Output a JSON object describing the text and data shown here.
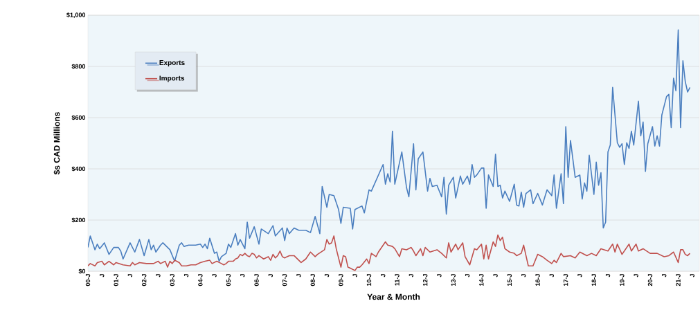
{
  "chart_data": {
    "type": "line",
    "xlabel": "Year & Month",
    "ylabel": "$s CAD Millions",
    "xlim": [
      "2000-01",
      "2021-10"
    ],
    "xticks": [
      {
        "value": "2000-01",
        "label": "00-J"
      },
      {
        "value": "2000-07",
        "label": "J"
      },
      {
        "value": "2001-01",
        "label": "01-J"
      },
      {
        "value": "2001-07",
        "label": "J"
      },
      {
        "value": "2002-01",
        "label": "02-J"
      },
      {
        "value": "2002-07",
        "label": "J"
      },
      {
        "value": "2003-01",
        "label": "03-J"
      },
      {
        "value": "2003-07",
        "label": "J"
      },
      {
        "value": "2004-01",
        "label": "04-J"
      },
      {
        "value": "2004-07",
        "label": "J"
      },
      {
        "value": "2005-01",
        "label": "05-J"
      },
      {
        "value": "2005-07",
        "label": "J"
      },
      {
        "value": "2006-01",
        "label": "06-J"
      },
      {
        "value": "2006-07",
        "label": "J"
      },
      {
        "value": "2007-01",
        "label": "07-J"
      },
      {
        "value": "2007-07",
        "label": "J"
      },
      {
        "value": "2008-01",
        "label": "08-J"
      },
      {
        "value": "2008-07",
        "label": "J"
      },
      {
        "value": "2009-01",
        "label": "09-J"
      },
      {
        "value": "2009-07",
        "label": "J"
      },
      {
        "value": "2010-01",
        "label": "10-J"
      },
      {
        "value": "2010-07",
        "label": "J"
      },
      {
        "value": "2011-01",
        "label": "11-J"
      },
      {
        "value": "2011-07",
        "label": "J"
      },
      {
        "value": "2012-01",
        "label": "12-J"
      },
      {
        "value": "2012-07",
        "label": "J"
      },
      {
        "value": "2013-01",
        "label": "13-J"
      },
      {
        "value": "2013-07",
        "label": "J"
      },
      {
        "value": "2014-01",
        "label": "14-J"
      },
      {
        "value": "2014-07",
        "label": "J"
      },
      {
        "value": "2015-01",
        "label": "15-J"
      },
      {
        "value": "2015-07",
        "label": "J"
      },
      {
        "value": "2016-01",
        "label": "16-J"
      },
      {
        "value": "2016-07",
        "label": "J"
      },
      {
        "value": "2017-01",
        "label": "17-J"
      },
      {
        "value": "2017-07",
        "label": "J"
      },
      {
        "value": "2018-01",
        "label": "18-J"
      },
      {
        "value": "2018-07",
        "label": "J"
      },
      {
        "value": "2019-01",
        "label": "19-J"
      },
      {
        "value": "2019-07",
        "label": "J"
      },
      {
        "value": "2020-01",
        "label": "20-J"
      },
      {
        "value": "2020-07",
        "label": "J"
      },
      {
        "value": "2021-01",
        "label": "21-J"
      },
      {
        "value": "2021-07",
        "label": "J"
      }
    ],
    "ylim": [
      0,
      1000
    ],
    "yticks": [
      {
        "value": 0,
        "label": "$0"
      },
      {
        "value": 200,
        "label": "$200"
      },
      {
        "value": 400,
        "label": "$400"
      },
      {
        "value": 600,
        "label": "$600"
      },
      {
        "value": 800,
        "label": "$800"
      },
      {
        "value": 1000,
        "label": "$1,000"
      }
    ],
    "grid": "y",
    "legend": "top left",
    "marker": "none",
    "line_style": "solid",
    "series": [
      {
        "name": "Exports",
        "color": "#4a7ebf",
        "x": [
          "2000-01",
          "2000-02",
          "2000-04",
          "2000-05",
          "2000-06",
          "2000-08",
          "2000-10",
          "2000-12",
          "2001-02",
          "2001-03",
          "2001-04",
          "2001-07",
          "2001-09",
          "2001-11",
          "2002-01",
          "2002-03",
          "2002-04",
          "2002-05",
          "2002-06",
          "2002-08",
          "2002-09",
          "2002-12",
          "2003-02",
          "2003-04",
          "2003-05",
          "2003-06",
          "2003-08",
          "2003-11",
          "2004-01",
          "2004-02",
          "2004-03",
          "2004-04",
          "2004-05",
          "2004-07",
          "2004-08",
          "2004-09",
          "2004-10",
          "2004-12",
          "2005-01",
          "2005-02",
          "2005-04",
          "2005-05",
          "2005-06",
          "2005-08",
          "2005-09",
          "2005-10",
          "2005-12",
          "2006-02",
          "2006-03",
          "2006-06",
          "2006-08",
          "2006-09",
          "2006-12",
          "2007-01",
          "2007-02",
          "2007-03",
          "2007-05",
          "2007-07",
          "2007-10",
          "2007-12",
          "2008-02",
          "2008-04",
          "2008-05",
          "2008-07",
          "2008-08",
          "2008-10",
          "2008-12",
          "2009-01",
          "2009-02",
          "2009-05",
          "2009-06",
          "2009-07",
          "2009-10",
          "2009-11",
          "2010-01",
          "2010-02",
          "2010-07",
          "2010-08",
          "2010-09",
          "2010-10",
          "2010-11",
          "2010-12",
          "2011-03",
          "2011-05",
          "2011-06",
          "2011-08",
          "2011-09",
          "2011-10",
          "2011-12",
          "2012-02",
          "2012-03",
          "2012-04",
          "2012-06",
          "2012-08",
          "2012-09",
          "2012-10",
          "2012-11",
          "2013-01",
          "2013-02",
          "2013-04",
          "2013-05",
          "2013-07",
          "2013-08",
          "2013-09",
          "2013-10",
          "2013-11",
          "2014-01",
          "2014-02",
          "2014-03",
          "2014-04",
          "2014-06",
          "2014-07",
          "2014-08",
          "2014-09",
          "2014-10",
          "2014-11",
          "2015-01",
          "2015-03",
          "2015-04",
          "2015-05",
          "2015-06",
          "2015-07",
          "2015-08",
          "2015-10",
          "2015-11",
          "2016-01",
          "2016-03",
          "2016-05",
          "2016-07",
          "2016-08",
          "2016-09",
          "2016-11",
          "2016-12",
          "2017-01",
          "2017-02",
          "2017-03",
          "2017-05",
          "2017-07",
          "2017-08",
          "2017-09",
          "2017-10",
          "2017-11",
          "2018-01",
          "2018-02",
          "2018-03",
          "2018-04",
          "2018-05",
          "2018-06",
          "2018-07",
          "2018-08",
          "2018-09",
          "2018-11",
          "2018-12",
          "2019-01",
          "2019-02",
          "2019-03",
          "2019-04",
          "2019-05",
          "2019-06",
          "2019-08",
          "2019-09",
          "2019-10",
          "2019-11",
          "2019-12",
          "2020-02",
          "2020-03",
          "2020-04",
          "2020-05",
          "2020-06",
          "2020-08",
          "2020-09",
          "2020-10",
          "2020-11",
          "2020-12",
          "2021-01",
          "2021-02",
          "2021-03",
          "2021-04",
          "2021-05",
          "2021-06"
        ],
        "values": [
          93,
          138,
          84,
          106,
          88,
          111,
          66,
          93,
          93,
          79,
          48,
          111,
          75,
          124,
          61,
          124,
          84,
          102,
          75,
          102,
          111,
          84,
          39,
          102,
          111,
          97,
          102,
          102,
          106,
          93,
          106,
          88,
          129,
          70,
          75,
          39,
          57,
          70,
          106,
          93,
          147,
          102,
          124,
          88,
          192,
          129,
          174,
          106,
          165,
          147,
          178,
          138,
          169,
          120,
          169,
          147,
          169,
          160,
          160,
          151,
          214,
          147,
          331,
          250,
          300,
          295,
          241,
          187,
          250,
          246,
          165,
          241,
          255,
          228,
          318,
          313,
          417,
          340,
          381,
          349,
          547,
          340,
          466,
          327,
          291,
          498,
          318,
          439,
          466,
          313,
          363,
          331,
          336,
          291,
          367,
          223,
          336,
          367,
          286,
          372,
          340,
          372,
          340,
          417,
          367,
          376,
          403,
          403,
          246,
          376,
          331,
          457,
          331,
          336,
          286,
          313,
          273,
          340,
          259,
          255,
          309,
          250,
          304,
          318,
          264,
          304,
          259,
          318,
          295,
          376,
          246,
          381,
          264,
          565,
          367,
          511,
          367,
          376,
          282,
          345,
          313,
          453,
          300,
          426,
          336,
          385,
          169,
          192,
          466,
          493,
          718,
          502,
          484,
          498,
          417,
          502,
          480,
          547,
          493,
          664,
          529,
          583,
          390,
          498,
          565,
          489,
          529,
          489,
          610,
          682,
          691,
          561,
          754,
          705,
          943,
          561,
          822,
          741,
          700,
          718
        ]
      },
      {
        "name": "Imports",
        "color": "#c0504d",
        "x": [
          "2000-01",
          "2000-02",
          "2000-04",
          "2000-05",
          "2000-07",
          "2000-08",
          "2000-10",
          "2000-12",
          "2001-01",
          "2001-04",
          "2001-07",
          "2001-08",
          "2001-09",
          "2001-11",
          "2002-02",
          "2002-05",
          "2002-07",
          "2002-08",
          "2002-10",
          "2002-11",
          "2002-12",
          "2003-01",
          "2003-02",
          "2003-04",
          "2003-05",
          "2003-07",
          "2003-09",
          "2003-11",
          "2004-01",
          "2004-03",
          "2004-05",
          "2004-06",
          "2004-08",
          "2004-10",
          "2004-11",
          "2004-12",
          "2005-01",
          "2005-03",
          "2005-04",
          "2005-05",
          "2005-06",
          "2005-07",
          "2005-08",
          "2005-09",
          "2005-10",
          "2005-11",
          "2005-12",
          "2006-01",
          "2006-02",
          "2006-04",
          "2006-06",
          "2006-07",
          "2006-08",
          "2006-09",
          "2006-10",
          "2006-11",
          "2006-12",
          "2007-01",
          "2007-02",
          "2007-03",
          "2007-05",
          "2007-08",
          "2007-10",
          "2007-12",
          "2008-02",
          "2008-03",
          "2008-06",
          "2008-07",
          "2008-08",
          "2008-09",
          "2008-10",
          "2008-11",
          "2009-01",
          "2009-02",
          "2009-03",
          "2009-04",
          "2009-05",
          "2009-07",
          "2009-08",
          "2009-09",
          "2009-10",
          "2009-12",
          "2010-01",
          "2010-02",
          "2010-04",
          "2010-05",
          "2010-08",
          "2010-09",
          "2010-11",
          "2010-12",
          "2011-02",
          "2011-03",
          "2011-05",
          "2011-07",
          "2011-08",
          "2011-09",
          "2011-11",
          "2011-12",
          "2012-01",
          "2012-03",
          "2012-06",
          "2012-08",
          "2012-10",
          "2012-11",
          "2012-12",
          "2013-02",
          "2013-03",
          "2013-05",
          "2013-06",
          "2013-08",
          "2013-10",
          "2013-11",
          "2014-01",
          "2014-02",
          "2014-03",
          "2014-04",
          "2014-06",
          "2014-07",
          "2014-08",
          "2014-09",
          "2014-10",
          "2014-11",
          "2015-01",
          "2015-03",
          "2015-04",
          "2015-06",
          "2015-07",
          "2015-08",
          "2015-09",
          "2015-11",
          "2016-01",
          "2016-03",
          "2016-05",
          "2016-07",
          "2016-08",
          "2016-09",
          "2016-11",
          "2016-12",
          "2017-03",
          "2017-05",
          "2017-07",
          "2017-10",
          "2017-12",
          "2018-02",
          "2018-04",
          "2018-07",
          "2018-09",
          "2018-10",
          "2018-11",
          "2019-01",
          "2019-04",
          "2019-05",
          "2019-07",
          "2019-08",
          "2019-10",
          "2020-01",
          "2020-04",
          "2020-07",
          "2020-09",
          "2020-11",
          "2021-01",
          "2021-02",
          "2021-03",
          "2021-04",
          "2021-05",
          "2021-06"
        ],
        "values": [
          21,
          30,
          21,
          34,
          39,
          25,
          39,
          25,
          34,
          25,
          21,
          34,
          25,
          34,
          30,
          30,
          39,
          30,
          39,
          16,
          39,
          30,
          43,
          34,
          21,
          21,
          25,
          25,
          34,
          39,
          43,
          30,
          39,
          30,
          25,
          30,
          39,
          39,
          48,
          52,
          66,
          61,
          70,
          61,
          57,
          70,
          66,
          52,
          61,
          48,
          57,
          43,
          66,
          52,
          61,
          79,
          57,
          52,
          57,
          61,
          61,
          34,
          48,
          75,
          57,
          66,
          84,
          124,
          106,
          111,
          138,
          88,
          16,
          61,
          57,
          16,
          12,
          3,
          16,
          16,
          25,
          48,
          30,
          70,
          57,
          75,
          115,
          102,
          97,
          88,
          57,
          88,
          84,
          93,
          79,
          61,
          88,
          61,
          93,
          75,
          84,
          70,
          52,
          111,
          75,
          106,
          84,
          111,
          57,
          25,
          88,
          84,
          106,
          48,
          102,
          48,
          115,
          97,
          142,
          120,
          133,
          88,
          75,
          70,
          61,
          70,
          102,
          61,
          21,
          21,
          66,
          57,
          43,
          30,
          43,
          34,
          70,
          57,
          61,
          52,
          75,
          61,
          70,
          61,
          88,
          79,
          106,
          75,
          106,
          66,
          106,
          79,
          106,
          79,
          88,
          70,
          70,
          57,
          61,
          75,
          34,
          84,
          84,
          66,
          61,
          70
        ]
      }
    ]
  }
}
